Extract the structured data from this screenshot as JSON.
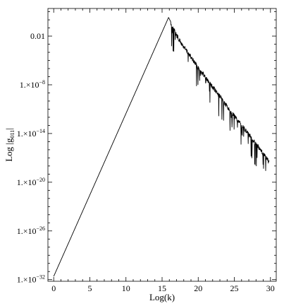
{
  "chart_data": {
    "type": "line",
    "xlabel": "Log(k)",
    "ylabel": "Log |g",
    "ylabel_sub": "011",
    "ylabel_suffix": "|",
    "xlim": [
      -0.8,
      30.8
    ],
    "ylim_log10": [
      -32.2,
      1.4
    ],
    "x_ticks": [
      0,
      5,
      10,
      15,
      20,
      25,
      30
    ],
    "x_tick_labels": [
      "0",
      "5",
      "10",
      "15",
      "20",
      "25",
      "30"
    ],
    "y_ticks_log10": [
      -2,
      -8,
      -14,
      -20,
      -26,
      -32
    ],
    "y_tick_labels": [
      "0.01",
      "1.×10",
      "1.×10",
      "1.×10",
      "1.×10",
      "1.×10"
    ],
    "y_tick_exponents": [
      "",
      "−8",
      "−14",
      "−20",
      "−26",
      "−32"
    ],
    "series": [
      {
        "envelope_points": [
          [
            0.0,
            -31.6
          ],
          [
            15.9,
            0.3
          ],
          [
            16.5,
            -0.8
          ],
          [
            17.5,
            -2.4
          ],
          [
            20.0,
            -5.6
          ],
          [
            22.5,
            -8.6
          ],
          [
            25.0,
            -11.6
          ],
          [
            27.5,
            -14.4
          ],
          [
            29.8,
            -17.2
          ]
        ],
        "oscillation_start_x": 16.2,
        "oscillation_end_x": 29.8
      }
    ]
  }
}
